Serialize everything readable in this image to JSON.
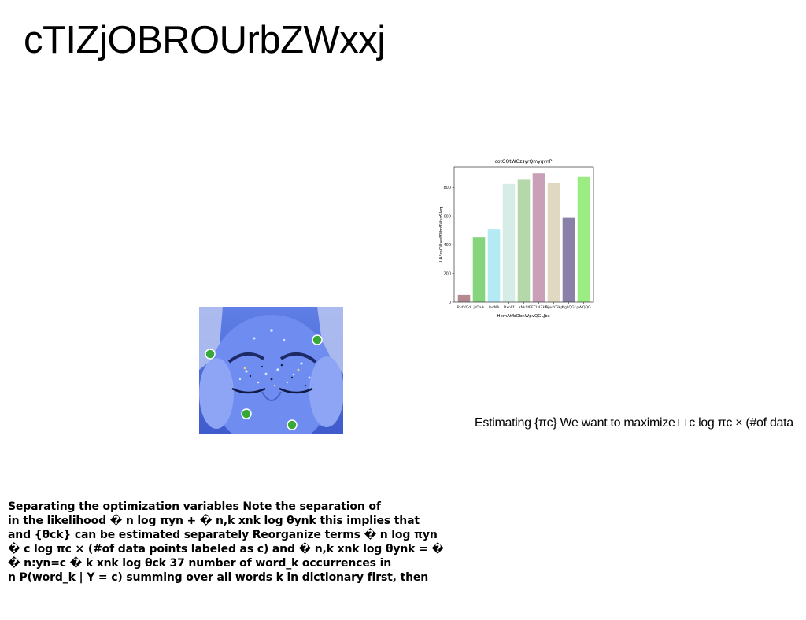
{
  "title": "cTIZjOBROUrbZWxxj",
  "right_text": "Estimating {πc} We want to maximize □ c log πc × (#of data",
  "paragraph_lines": [
    "Separating the optimization variables Note the separation of",
    "in the likelihood � n log πyn + � n,k xnk log θynk this implies that",
    "and {θck} can be estimated separately Reorganize terms � n log πyn",
    "� c log πc × (#of data points labeled as c) and � n,k xnk log θynk = �",
    "� n:yn=c � k xnk log θck 37 number of word_k occurrences in",
    "n P(word_k | Y = c) summing over all words k in dictionary first, then"
  ],
  "photo": {
    "subject": "face-with-blue-tint-and-decorations"
  },
  "chart_data": {
    "type": "bar",
    "title": "cotGOtWGzsyrQmyqvnP",
    "xlabel": "HemAtfbObnWpvQGLJbs",
    "ylabel": "UAFcsCWzerBWmBWvnSIwq",
    "categories": [
      "RvtVQd",
      "jzDaik",
      "IadNA",
      "DxnFf",
      "aNkSt",
      "EECLdZkNj",
      "ZuwIYGKp",
      "ffgLQGf",
      "pWQQG"
    ],
    "values": [
      50,
      455,
      510,
      825,
      855,
      900,
      830,
      590,
      875
    ],
    "colors": [
      "#b48a90",
      "#86d47c",
      "#b4eaf4",
      "#d6ece6",
      "#b4d8aa",
      "#caa0b8",
      "#e0d8c0",
      "#8a80a8",
      "#9cec84"
    ],
    "yticks": [
      0,
      200,
      400,
      600,
      800
    ],
    "ylim": [
      0,
      945
    ]
  }
}
